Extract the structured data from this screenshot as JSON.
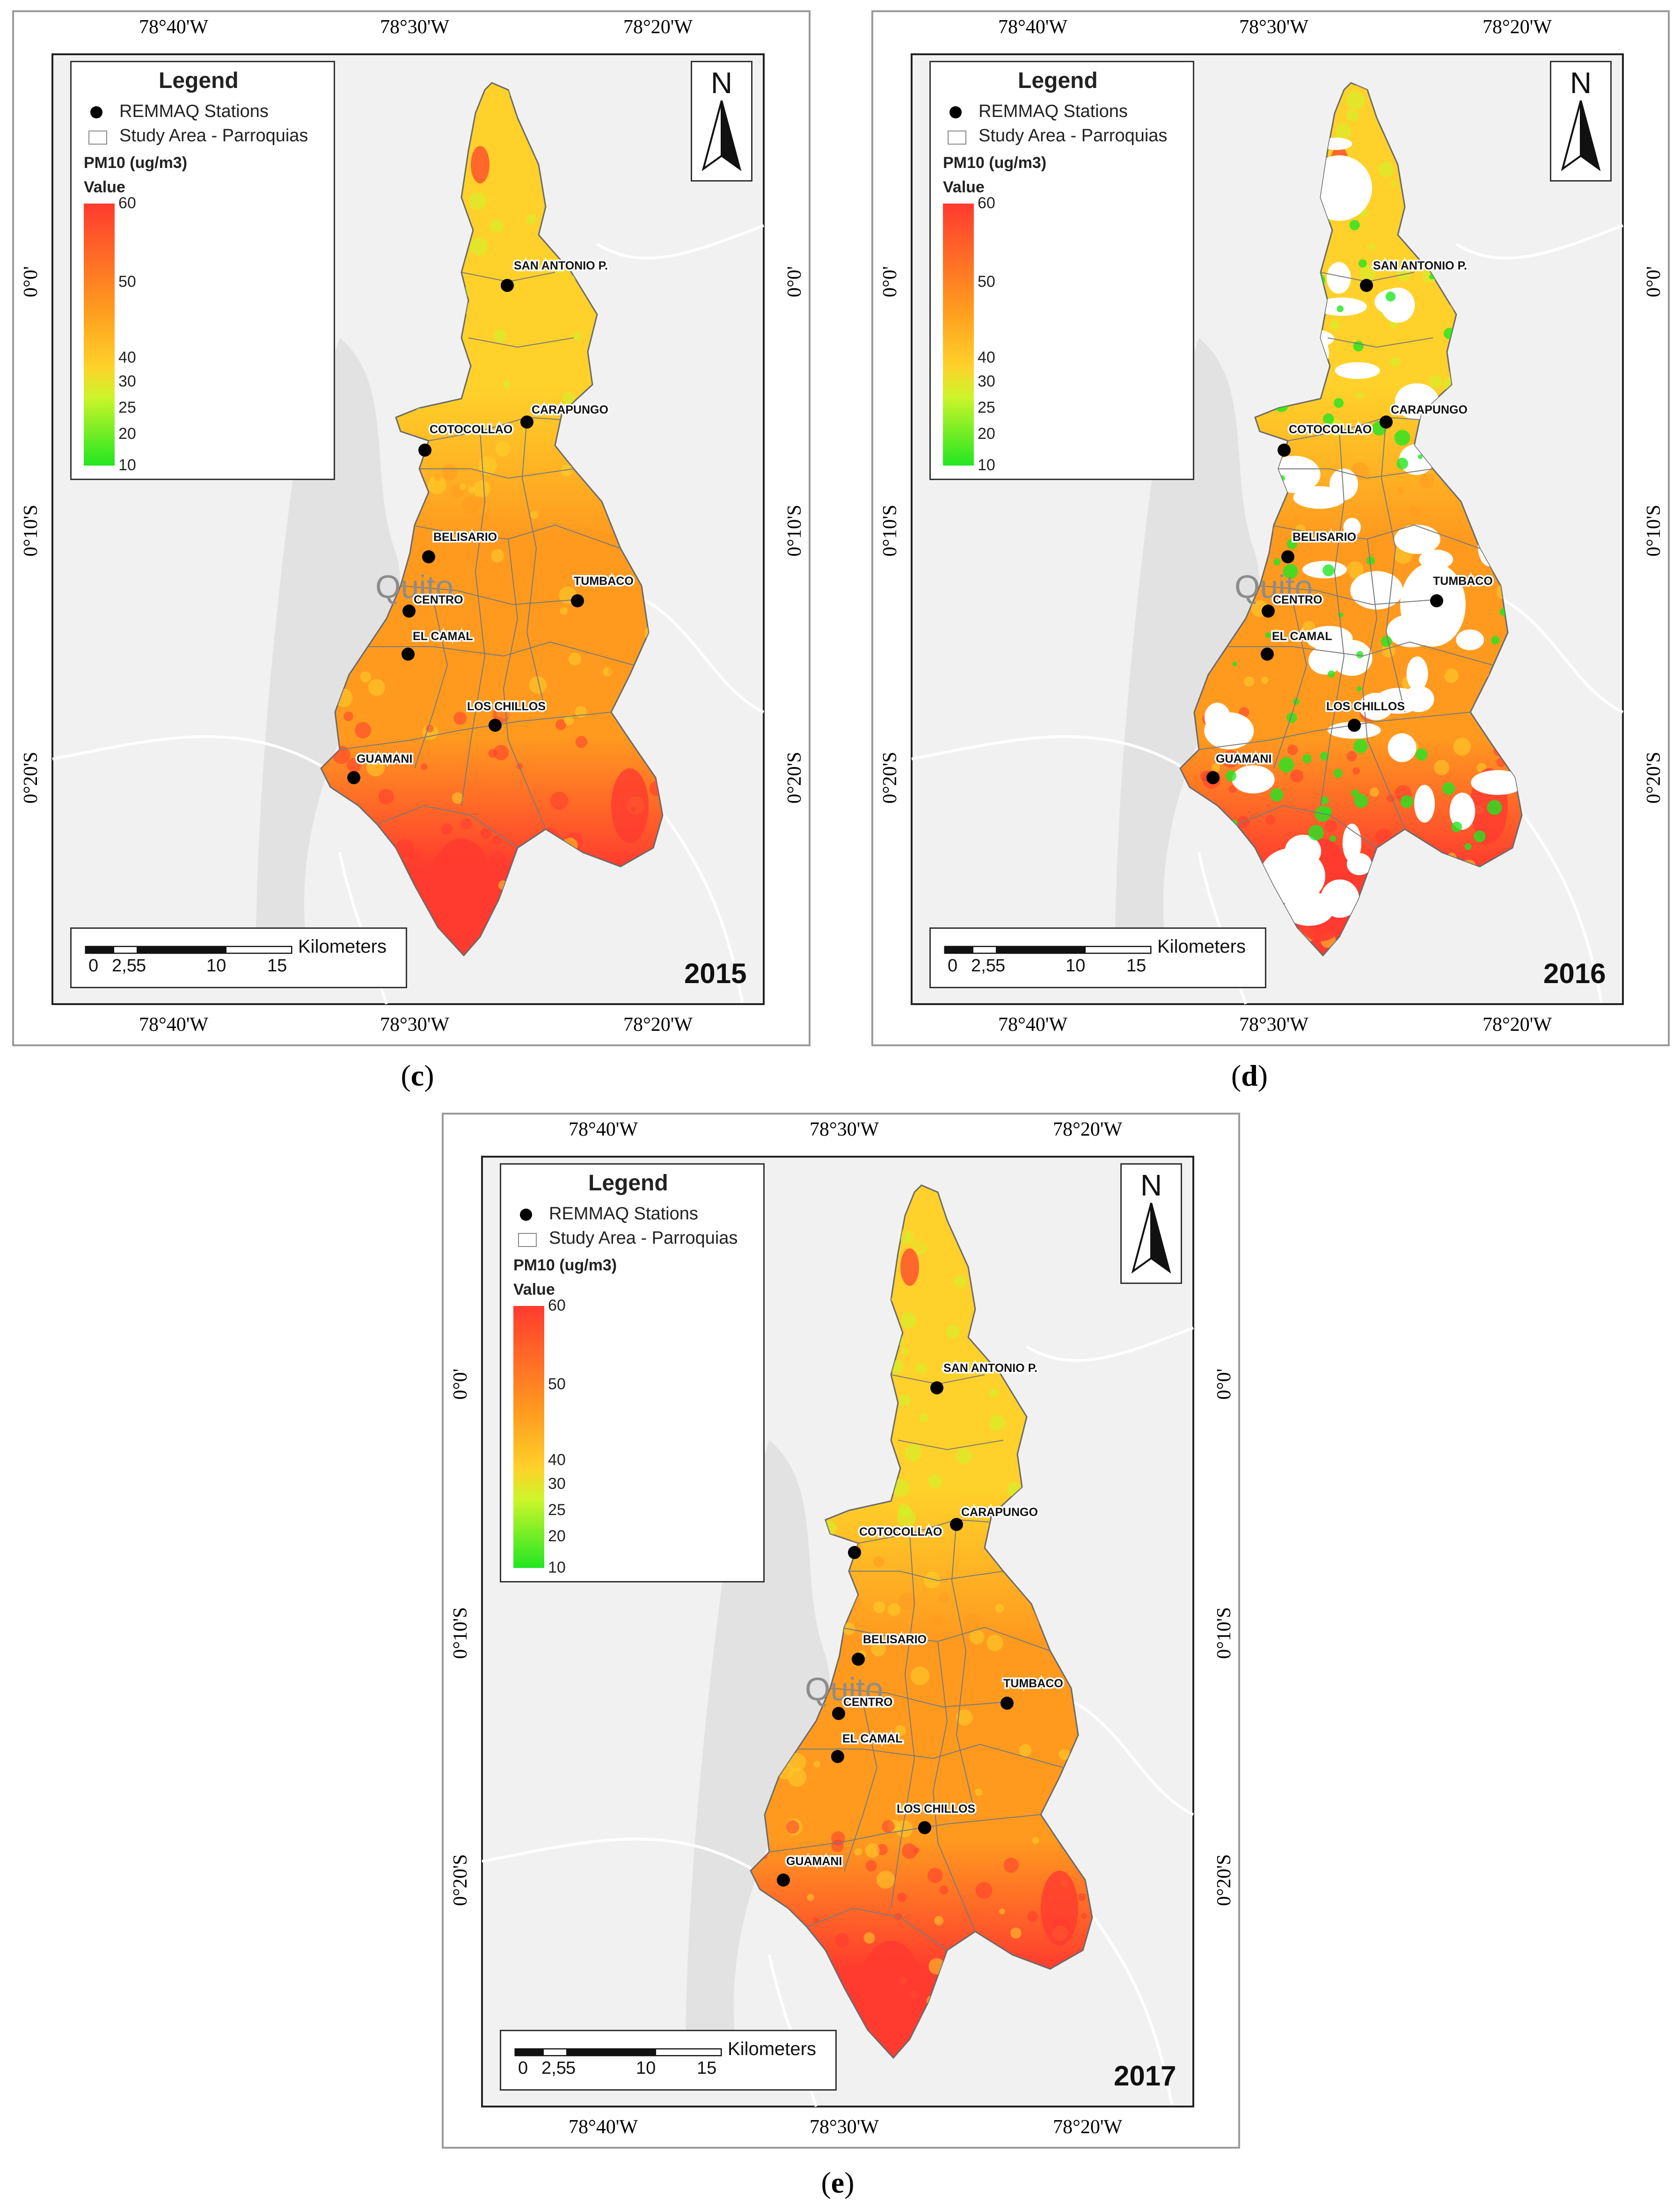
{
  "panels": [
    {
      "id": "c",
      "caption": "c",
      "year": "2015",
      "variant": "full"
    },
    {
      "id": "d",
      "caption": "d",
      "year": "2016",
      "variant": "gaps"
    },
    {
      "id": "e",
      "caption": "e",
      "year": "2017",
      "variant": "full"
    }
  ],
  "coords": {
    "lon": [
      "78°40'W",
      "78°30'W",
      "78°20'W"
    ],
    "lat": [
      "0°0'",
      "0°10'S",
      "0°20'S"
    ]
  },
  "legend": {
    "title": "Legend",
    "stations": "REMMAQ Stations",
    "study_area": "Study Area - Parroquias",
    "variable": "PM10 (ug/m3)",
    "value_label": "Value",
    "ticks": [
      "60",
      "50",
      "40",
      "30",
      "25",
      "20",
      "10"
    ]
  },
  "north_label": "N",
  "scalebar": {
    "unit": "Kilometers",
    "ticks": [
      "0",
      "2,5",
      "5",
      "10",
      "15"
    ]
  },
  "basemap_label": "Quito",
  "stations": [
    "SAN ANTONIO P.",
    "CARAPUNGO",
    "COTOCOLLAO",
    "BELISARIO",
    "TUMBACO",
    "CENTRO",
    "EL CAMAL",
    "LOS CHILLOS",
    "GUAMANI"
  ],
  "colors": {
    "high": "#ff3b2f",
    "mid_high": "#ff9a1f",
    "mid": "#ffd12a",
    "low_mid": "#ccf52a",
    "low": "#22e622",
    "no_data": "#ffffff"
  }
}
